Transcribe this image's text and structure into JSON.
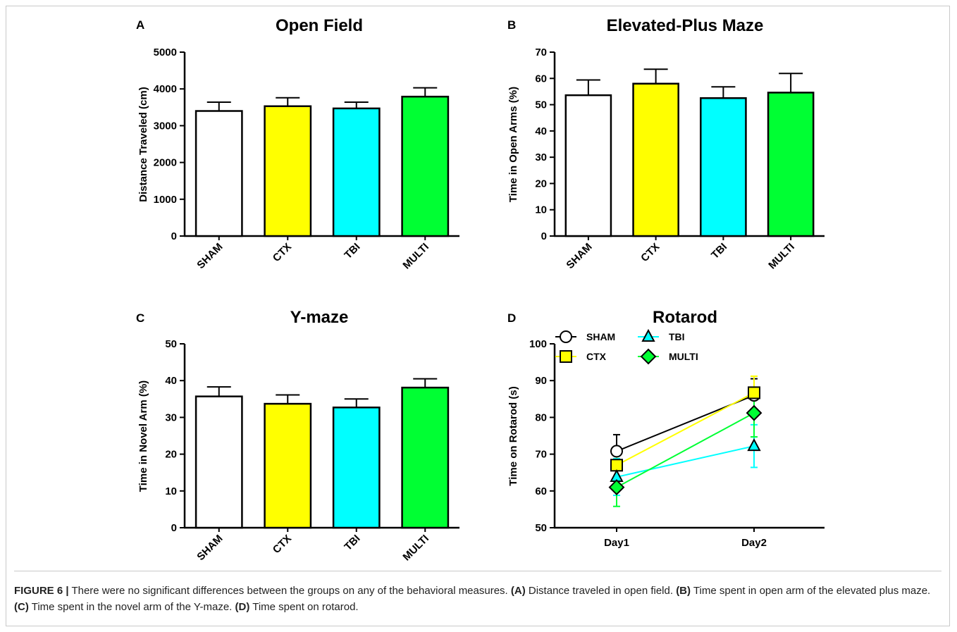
{
  "chart_data": [
    {
      "panel": "A",
      "type": "bar",
      "title": "Open Field",
      "ylabel": "Distance Traveled (cm)",
      "categories": [
        "SHAM",
        "CTX",
        "TBI",
        "MULTI"
      ],
      "values": [
        3400,
        3530,
        3470,
        3790
      ],
      "errors": [
        240,
        230,
        170,
        240
      ],
      "colors": [
        "#ffffff",
        "#ffff00",
        "#00ffff",
        "#00ff33"
      ],
      "ylim": [
        0,
        5000
      ],
      "yticks": [
        "0",
        "1000",
        "2000",
        "3000",
        "4000",
        "5000"
      ],
      "grid": false
    },
    {
      "panel": "B",
      "type": "bar",
      "title": "Elevated-Plus Maze",
      "ylabel": "Time in Open Arms (%)",
      "categories": [
        "SHAM",
        "CTX",
        "TBI",
        "MULTI"
      ],
      "values": [
        53.6,
        58.0,
        52.5,
        54.6
      ],
      "errors": [
        5.8,
        5.5,
        4.3,
        7.3
      ],
      "colors": [
        "#ffffff",
        "#ffff00",
        "#00ffff",
        "#00ff33"
      ],
      "ylim": [
        0,
        70
      ],
      "yticks": [
        "0",
        "10",
        "20",
        "30",
        "40",
        "50",
        "60",
        "70"
      ],
      "grid": false
    },
    {
      "panel": "C",
      "type": "bar",
      "title": "Y-maze",
      "ylabel": "Time in Novel Arm (%)",
      "categories": [
        "SHAM",
        "CTX",
        "TBI",
        "MULTI"
      ],
      "values": [
        35.7,
        33.7,
        32.7,
        38.1
      ],
      "errors": [
        2.6,
        2.4,
        2.3,
        2.4
      ],
      "colors": [
        "#ffffff",
        "#ffff00",
        "#00ffff",
        "#00ff33"
      ],
      "ylim": [
        0,
        50
      ],
      "yticks": [
        "0",
        "10",
        "20",
        "30",
        "40",
        "50"
      ],
      "grid": false
    },
    {
      "panel": "D",
      "type": "line",
      "title": "Rotarod",
      "ylabel": "Time on Rotarod (s)",
      "categories": [
        "Day1",
        "Day2"
      ],
      "ylim": [
        50,
        100
      ],
      "yticks": [
        "50",
        "60",
        "70",
        "80",
        "90",
        "100"
      ],
      "legend_position": "top-left",
      "grid": false,
      "series": [
        {
          "name": "SHAM",
          "values": [
            70.8,
            86.0
          ],
          "errors": [
            4.5,
            4.5
          ],
          "color": "#000000",
          "fill": "#ffffff",
          "marker": "circle"
        },
        {
          "name": "CTX",
          "values": [
            67.0,
            86.7
          ],
          "errors": [
            4.0,
            4.5
          ],
          "color": "#ffff00",
          "fill": "#ffff00",
          "marker": "square"
        },
        {
          "name": "TBI",
          "values": [
            63.8,
            72.2
          ],
          "errors": [
            5.0,
            5.8
          ],
          "color": "#00ffff",
          "fill": "#00ffff",
          "marker": "triangle"
        },
        {
          "name": "MULTI",
          "values": [
            61.0,
            81.2
          ],
          "errors": [
            5.2,
            6.5
          ],
          "color": "#00ff33",
          "fill": "#00ff33",
          "marker": "diamond"
        }
      ]
    }
  ],
  "caption": {
    "label": "FIGURE 6 |",
    "text": "There were no significant differences between the groups on any of the behavioral measures.",
    "items": [
      {
        "key": "(A)",
        "text": "Distance traveled in open field."
      },
      {
        "key": "(B)",
        "text": "Time spent in open arm of the elevated plus maze."
      },
      {
        "key": "(C)",
        "text": "Time spent in the novel arm of the Y-maze."
      },
      {
        "key": "(D)",
        "text": "Time spent on rotarod."
      }
    ]
  }
}
